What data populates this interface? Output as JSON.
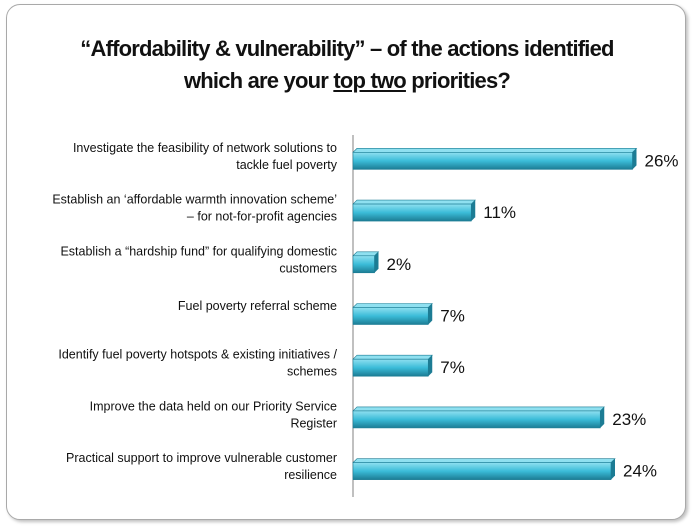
{
  "title": {
    "line1": "“Affordability & vulnerability” – of the actions identified",
    "line2_prefix": "which are your ",
    "line2_underlined": "top two",
    "line2_suffix": " priorities?"
  },
  "chart_data": {
    "type": "bar",
    "orientation": "horizontal",
    "title": "“Affordability & vulnerability” – of the actions identified which are your top two priorities?",
    "categories": [
      [
        "Investigate the feasibility of network solutions to",
        "tackle fuel poverty"
      ],
      [
        "Establish an ‘affordable warmth innovation scheme’",
        "– for not-for-profit agencies"
      ],
      [
        "Establish a “hardship fund” for qualifying domestic",
        "customers"
      ],
      [
        "Fuel poverty referral scheme"
      ],
      [
        "Identify fuel poverty hotspots & existing initiatives /",
        "schemes"
      ],
      [
        "Improve the data held on our Priority Service",
        "Register"
      ],
      [
        "Practical support to improve vulnerable customer",
        "resilience"
      ]
    ],
    "values": [
      26,
      11,
      2,
      7,
      7,
      23,
      24
    ],
    "value_labels": [
      "26%",
      "11%",
      "2%",
      "7%",
      "7%",
      "23%",
      "24%"
    ],
    "unit": "%",
    "xlim": [
      0,
      30
    ],
    "grid": false,
    "legend": "none",
    "bar_color": "#3bbcd8",
    "bar_top_color": "#8fe0f0",
    "bar_shadow_color": "#1c7c94"
  }
}
